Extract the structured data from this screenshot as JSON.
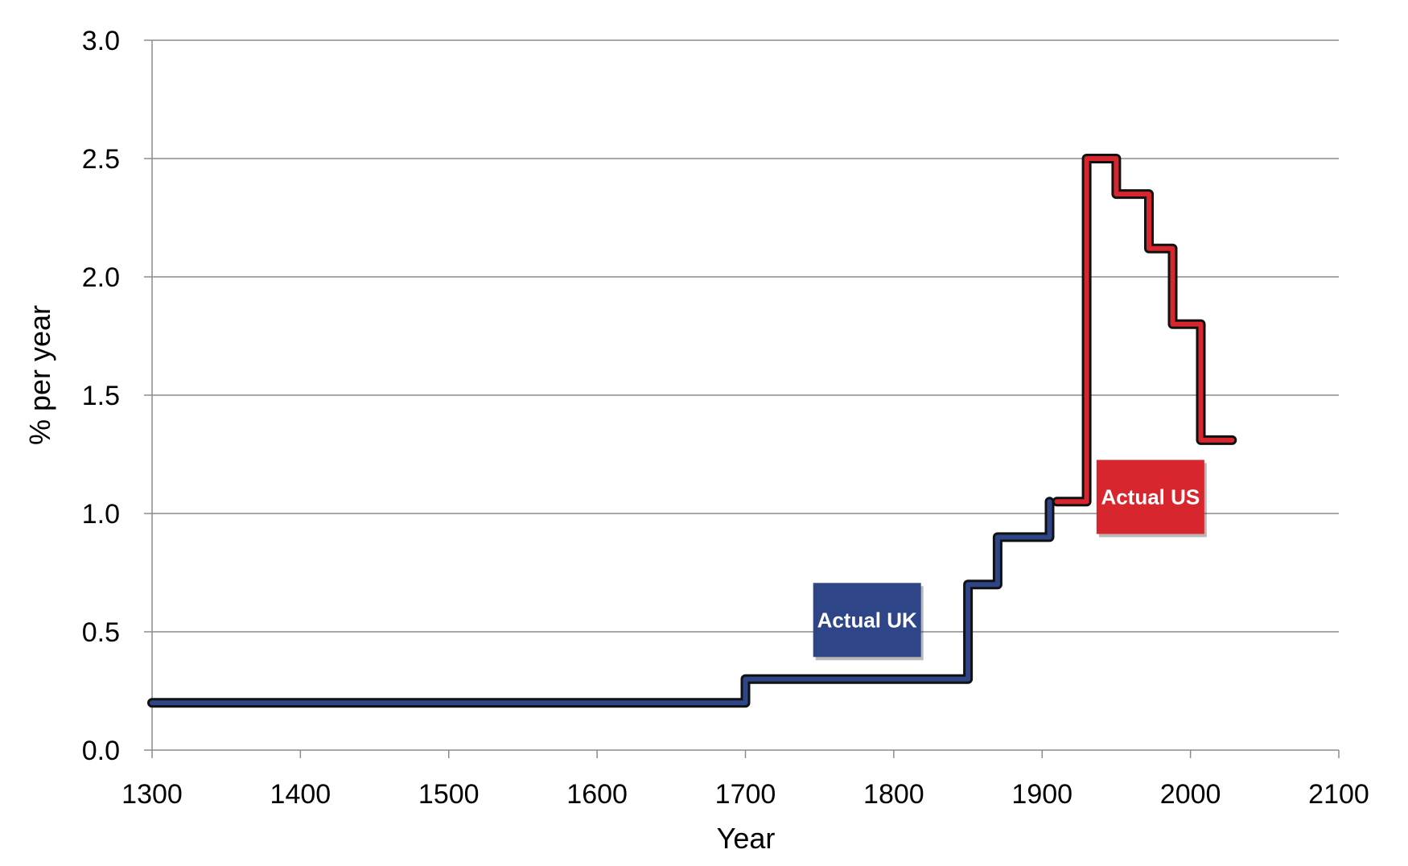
{
  "chart_data": {
    "type": "line",
    "title": "",
    "xlabel": "Year",
    "ylabel": "% per year",
    "xlim": [
      1300,
      2100
    ],
    "ylim": [
      0,
      3.0
    ],
    "x_ticks": [
      1300,
      1400,
      1500,
      1600,
      1700,
      1800,
      1900,
      2000,
      2100
    ],
    "y_ticks": [
      "0.0",
      "0.5",
      "1.0",
      "1.5",
      "2.0",
      "2.5",
      "3.0"
    ],
    "grid": "horizontal",
    "step": true,
    "series": [
      {
        "name": "Actual UK",
        "color": "#2e4687",
        "points": [
          [
            1300,
            0.2
          ],
          [
            1700,
            0.2
          ],
          [
            1700,
            0.3
          ],
          [
            1850,
            0.3
          ],
          [
            1850,
            0.7
          ],
          [
            1870,
            0.7
          ],
          [
            1870,
            0.9
          ],
          [
            1905,
            0.9
          ],
          [
            1905,
            1.05
          ]
        ]
      },
      {
        "name": "Actual US",
        "color": "#d8262f",
        "points": [
          [
            1910,
            1.05
          ],
          [
            1930,
            1.05
          ],
          [
            1930,
            2.5
          ],
          [
            1950,
            2.5
          ],
          [
            1950,
            2.35
          ],
          [
            1972,
            2.35
          ],
          [
            1972,
            2.12
          ],
          [
            1988,
            2.12
          ],
          [
            1988,
            1.8
          ],
          [
            2007,
            1.8
          ],
          [
            2007,
            1.31
          ],
          [
            2028,
            1.31
          ]
        ]
      }
    ],
    "annotations": [
      {
        "text": "Actual UK",
        "color": "#2e4687",
        "x": 1782,
        "y": 0.55
      },
      {
        "text": "Actual US",
        "color": "#d8262f",
        "x": 1973,
        "y": 1.07
      }
    ]
  }
}
